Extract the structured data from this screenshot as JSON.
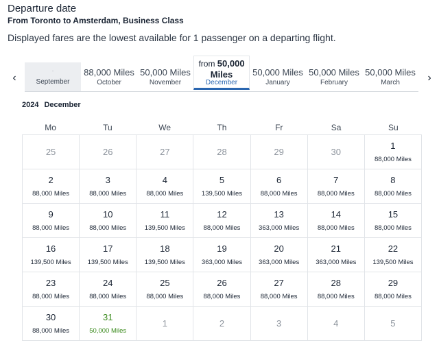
{
  "header": {
    "title": "Departure date",
    "route": "From Toronto to Amsterdam, Business Class",
    "note": "Displayed fares are the lowest available for 1 passenger on a departing flight."
  },
  "nav": {
    "prev_icon": "chevron-left-icon",
    "next_icon": "chevron-right-icon"
  },
  "months": [
    {
      "fare": "-",
      "name": "September",
      "state": "disabled"
    },
    {
      "fare": "88,000 Miles",
      "name": "October",
      "state": "normal"
    },
    {
      "fare": "50,000 Miles",
      "name": "November",
      "state": "normal"
    },
    {
      "fare_prefix": "from",
      "fare_value": "50,000",
      "fare_unit": "Miles",
      "name": "December",
      "state": "selected"
    },
    {
      "fare": "50,000 Miles",
      "name": "January",
      "state": "normal"
    },
    {
      "fare": "50,000 Miles",
      "name": "February",
      "state": "normal"
    },
    {
      "fare": "50,000 Miles",
      "name": "March",
      "state": "normal"
    }
  ],
  "calendar": {
    "year": "2024",
    "month": "December",
    "weekdays": [
      "Mo",
      "Tu",
      "We",
      "Th",
      "Fr",
      "Sa",
      "Su"
    ],
    "cells": [
      {
        "day": "25",
        "price": "",
        "state": "inactive"
      },
      {
        "day": "26",
        "price": "",
        "state": "inactive"
      },
      {
        "day": "27",
        "price": "",
        "state": "inactive"
      },
      {
        "day": "28",
        "price": "",
        "state": "inactive"
      },
      {
        "day": "29",
        "price": "",
        "state": "inactive"
      },
      {
        "day": "30",
        "price": "",
        "state": "inactive"
      },
      {
        "day": "1",
        "price": "88,000 Miles",
        "state": "active"
      },
      {
        "day": "2",
        "price": "88,000 Miles",
        "state": "active"
      },
      {
        "day": "3",
        "price": "88,000 Miles",
        "state": "active"
      },
      {
        "day": "4",
        "price": "88,000 Miles",
        "state": "active"
      },
      {
        "day": "5",
        "price": "139,500 Miles",
        "state": "active"
      },
      {
        "day": "6",
        "price": "88,000 Miles",
        "state": "active"
      },
      {
        "day": "7",
        "price": "88,000 Miles",
        "state": "active"
      },
      {
        "day": "8",
        "price": "88,000 Miles",
        "state": "active"
      },
      {
        "day": "9",
        "price": "88,000 Miles",
        "state": "active"
      },
      {
        "day": "10",
        "price": "88,000 Miles",
        "state": "active"
      },
      {
        "day": "11",
        "price": "139,500 Miles",
        "state": "active"
      },
      {
        "day": "12",
        "price": "88,000 Miles",
        "state": "active"
      },
      {
        "day": "13",
        "price": "363,000 Miles",
        "state": "active"
      },
      {
        "day": "14",
        "price": "88,000 Miles",
        "state": "active"
      },
      {
        "day": "15",
        "price": "88,000 Miles",
        "state": "active"
      },
      {
        "day": "16",
        "price": "139,500 Miles",
        "state": "active"
      },
      {
        "day": "17",
        "price": "139,500 Miles",
        "state": "active"
      },
      {
        "day": "18",
        "price": "139,500 Miles",
        "state": "active"
      },
      {
        "day": "19",
        "price": "363,000 Miles",
        "state": "active"
      },
      {
        "day": "20",
        "price": "363,000 Miles",
        "state": "active"
      },
      {
        "day": "21",
        "price": "363,000 Miles",
        "state": "active"
      },
      {
        "day": "22",
        "price": "139,500 Miles",
        "state": "active"
      },
      {
        "day": "23",
        "price": "88,000 Miles",
        "state": "active"
      },
      {
        "day": "24",
        "price": "88,000 Miles",
        "state": "active"
      },
      {
        "day": "25",
        "price": "88,000 Miles",
        "state": "active"
      },
      {
        "day": "26",
        "price": "88,000 Miles",
        "state": "active"
      },
      {
        "day": "27",
        "price": "88,000 Miles",
        "state": "active"
      },
      {
        "day": "28",
        "price": "88,000 Miles",
        "state": "active"
      },
      {
        "day": "29",
        "price": "88,000 Miles",
        "state": "active"
      },
      {
        "day": "30",
        "price": "88,000 Miles",
        "state": "active"
      },
      {
        "day": "31",
        "price": "50,000 Miles",
        "state": "lowest"
      },
      {
        "day": "1",
        "price": "",
        "state": "inactive"
      },
      {
        "day": "2",
        "price": "",
        "state": "inactive"
      },
      {
        "day": "3",
        "price": "",
        "state": "inactive"
      },
      {
        "day": "4",
        "price": "",
        "state": "inactive"
      },
      {
        "day": "5",
        "price": "",
        "state": "inactive"
      }
    ]
  },
  "colors": {
    "accent": "#2a66b0",
    "lowest_fare": "#3a8a1c",
    "disabled_bg": "#eceef1"
  }
}
